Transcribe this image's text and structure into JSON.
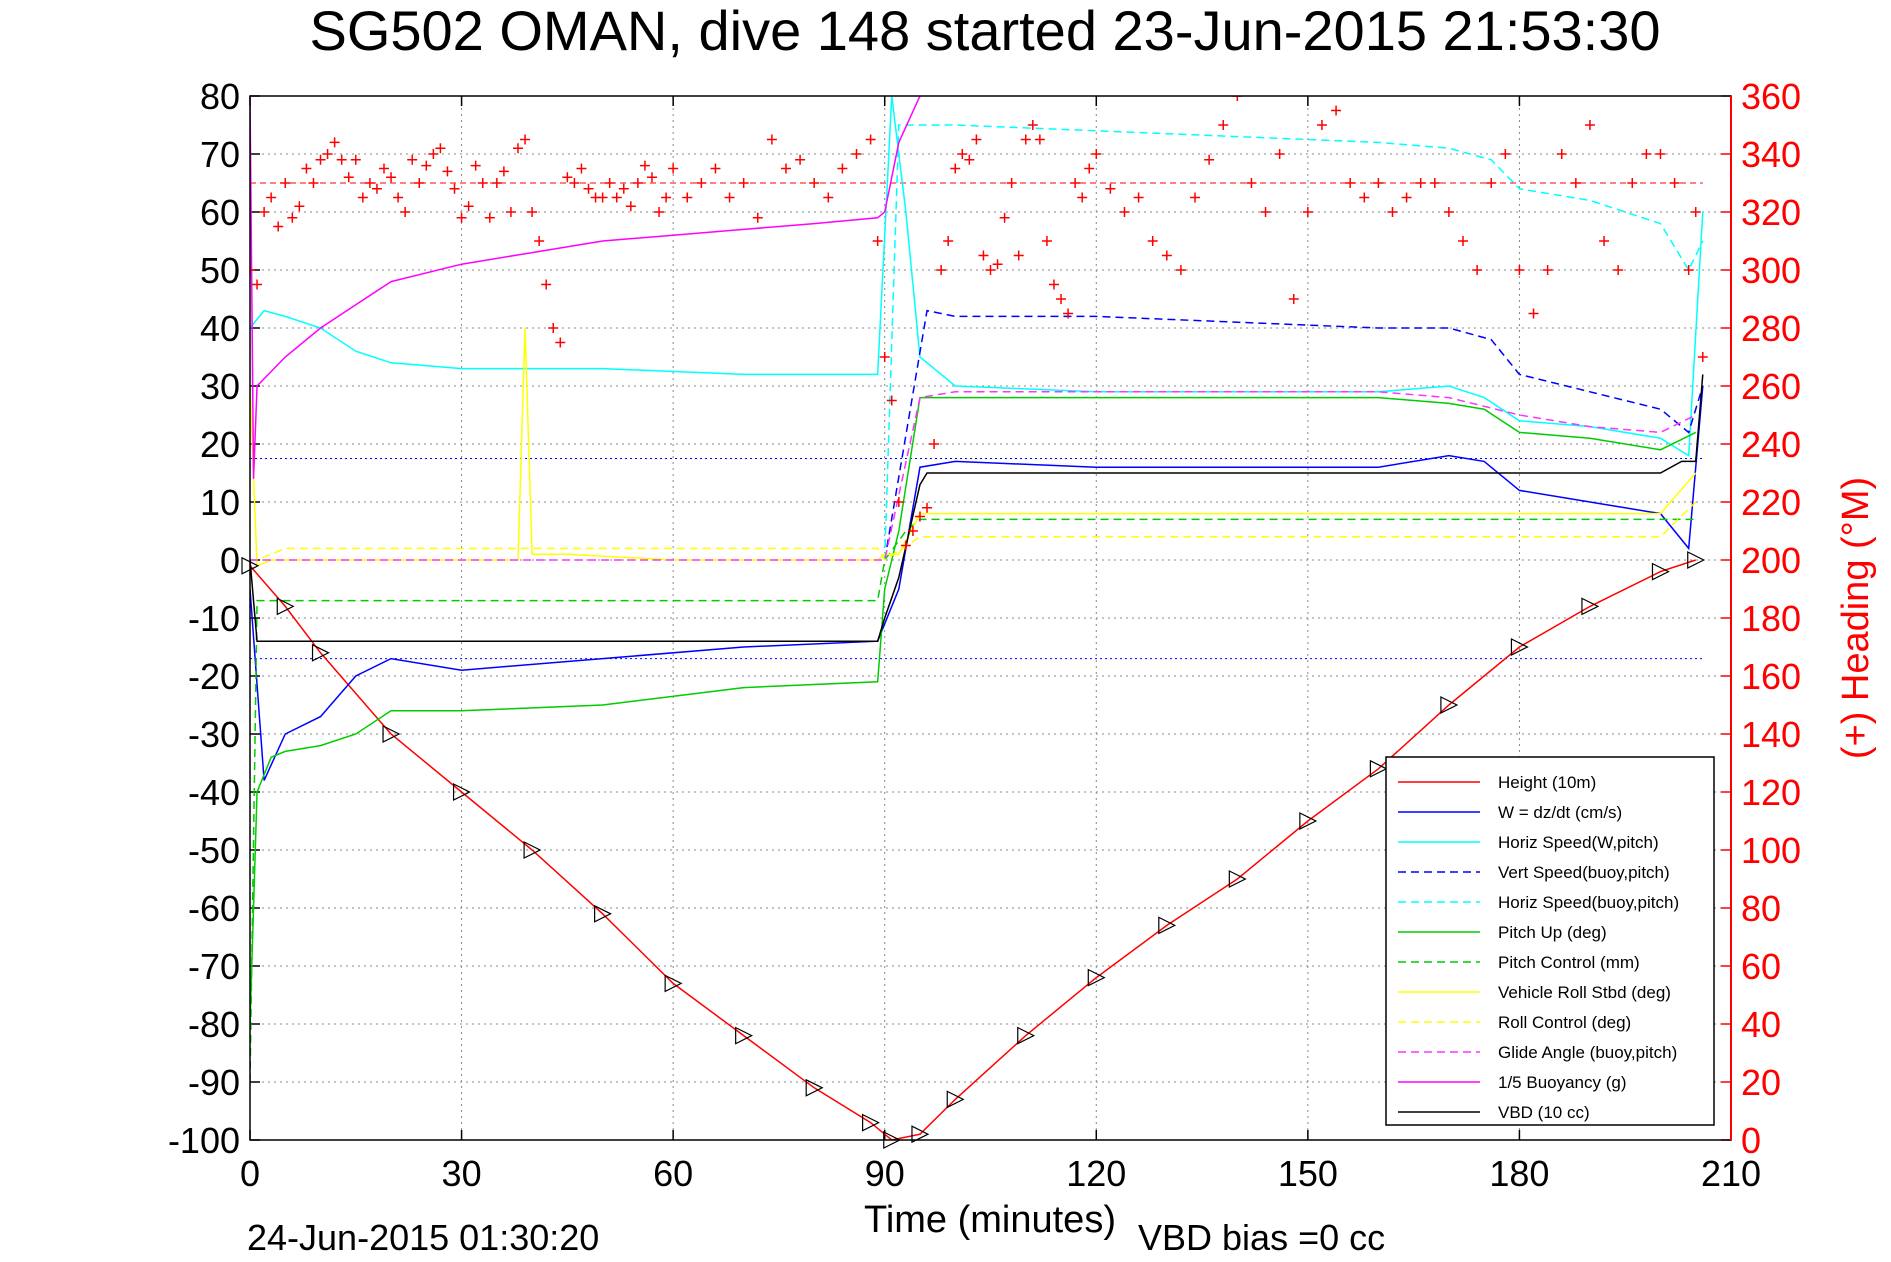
{
  "chart_data": {
    "type": "line",
    "title": "SG502 OMAN, dive 148 started 23-Jun-2015 21:53:30",
    "xlabel": "Time (minutes)",
    "ylabel": "",
    "y2label": "(+) Heading (°M)",
    "xlim": [
      0,
      210
    ],
    "ylim": [
      -100,
      80
    ],
    "y2lim": [
      0,
      360
    ],
    "xticks": [
      "0",
      "30",
      "60",
      "90",
      "120",
      "150",
      "180",
      "210"
    ],
    "yticks": [
      "80",
      "70",
      "60",
      "50",
      "40",
      "30",
      "20",
      "10",
      "0",
      "-10",
      "-20",
      "-30",
      "-40",
      "-50",
      "-60",
      "-70",
      "-80",
      "-90",
      "-100"
    ],
    "y2ticks": [
      "360",
      "340",
      "320",
      "300",
      "280",
      "260",
      "240",
      "220",
      "200",
      "180",
      "160",
      "140",
      "120",
      "100",
      "80",
      "60",
      "40",
      "20",
      "0"
    ],
    "grid": true,
    "legend_position": "bottom-right",
    "footer_left": "24-Jun-2015 01:30:20",
    "footer_right": "VBD bias =0 cc",
    "series": [
      {
        "name": "Height (10m)",
        "color": "#ff0000",
        "style": "solid",
        "x": [
          0,
          5,
          10,
          20,
          30,
          40,
          50,
          60,
          70,
          80,
          88,
          91,
          95,
          100,
          110,
          120,
          130,
          140,
          150,
          160,
          170,
          180,
          190,
          200,
          205
        ],
        "y": [
          -1,
          -8,
          -16,
          -30,
          -40,
          -50,
          -61,
          -73,
          -82,
          -91,
          -97,
          -100,
          -99,
          -93,
          -82,
          -72,
          -63,
          -55,
          -45,
          -36,
          -25,
          -15,
          -8,
          -2,
          0
        ]
      },
      {
        "name": "W = dz/dt (cm/s)",
        "color": "#0000ff",
        "style": "solid",
        "x": [
          0,
          2,
          5,
          10,
          15,
          20,
          30,
          50,
          70,
          89,
          92,
          95,
          100,
          120,
          140,
          160,
          170,
          175,
          180,
          190,
          200,
          204,
          206
        ],
        "y": [
          -5,
          -38,
          -30,
          -27,
          -20,
          -17,
          -19,
          -17,
          -15,
          -14,
          -5,
          16,
          17,
          16,
          16,
          16,
          18,
          17,
          12,
          10,
          8,
          2,
          30
        ]
      },
      {
        "name": "Horiz Speed(W,pitch)",
        "color": "#00ffff",
        "style": "solid",
        "x": [
          0,
          2,
          5,
          10,
          15,
          20,
          30,
          50,
          70,
          89,
          91,
          93,
          95,
          100,
          120,
          140,
          160,
          170,
          175,
          180,
          190,
          200,
          204,
          206
        ],
        "y": [
          40,
          43,
          42,
          40,
          36,
          34,
          33,
          33,
          32,
          32,
          80,
          60,
          35,
          30,
          29,
          29,
          29,
          30,
          28,
          24,
          23,
          21,
          18,
          60
        ]
      },
      {
        "name": "Vert Speed(buoy,pitch)",
        "color": "#0000ff",
        "style": "dashed",
        "x": [
          90,
          96,
          100,
          120,
          140,
          160,
          170,
          176,
          180,
          190,
          200,
          204,
          206
        ],
        "y": [
          0,
          43,
          42,
          42,
          41,
          40,
          40,
          38,
          32,
          29,
          26,
          22,
          30
        ]
      },
      {
        "name": "Horiz Speed(buoy,pitch)",
        "color": "#00ffff",
        "style": "dashed",
        "x": [
          90,
          92,
          96,
          100,
          120,
          140,
          160,
          170,
          176,
          180,
          190,
          200,
          204,
          206
        ],
        "y": [
          0,
          75,
          75,
          75,
          74,
          73,
          72,
          71,
          69,
          64,
          62,
          58,
          50,
          55
        ]
      },
      {
        "name": "Pitch Up (deg)",
        "color": "#00cc00",
        "style": "solid",
        "x": [
          0,
          1,
          3,
          5,
          10,
          15,
          20,
          30,
          50,
          70,
          89,
          90,
          92,
          95,
          100,
          120,
          140,
          160,
          170,
          175,
          180,
          190,
          200,
          205
        ],
        "y": [
          -80,
          -40,
          -34,
          -33,
          -32,
          -30,
          -26,
          -26,
          -25,
          -22,
          -21,
          -5,
          5,
          28,
          28,
          28,
          28,
          28,
          27,
          26,
          22,
          21,
          19,
          22
        ]
      },
      {
        "name": "Pitch Control (mm)",
        "color": "#00cc00",
        "style": "dashed",
        "x": [
          0,
          1,
          3,
          20,
          40,
          60,
          89,
          90,
          93,
          95,
          100,
          120,
          140,
          160,
          180,
          200,
          205
        ],
        "y": [
          -90,
          -7,
          -7,
          -7,
          -7,
          -7,
          -7,
          0,
          5,
          7,
          7,
          7,
          7,
          7,
          7,
          7,
          7
        ]
      },
      {
        "name": "Vehicle Roll Stbd (deg)",
        "color": "#ffff00",
        "style": "solid",
        "x": [
          0,
          1,
          3,
          10,
          20,
          38,
          39,
          40,
          45,
          60,
          80,
          89,
          90,
          92,
          95,
          100,
          120,
          140,
          160,
          170,
          175,
          180,
          190,
          200,
          205
        ],
        "y": [
          30,
          -1,
          0,
          0,
          0,
          0,
          40,
          1,
          1,
          0,
          0,
          0,
          1,
          1,
          8,
          8,
          8,
          8,
          8,
          8,
          8,
          8,
          8,
          8,
          15
        ]
      },
      {
        "name": "Roll Control (deg)",
        "color": "#ffff00",
        "style": "dashed",
        "x": [
          0,
          1,
          5,
          20,
          40,
          60,
          89,
          90,
          95,
          100,
          120,
          140,
          160,
          180,
          200,
          205
        ],
        "y": [
          0,
          0,
          2,
          2,
          2,
          2,
          2,
          0,
          4,
          4,
          4,
          4,
          4,
          4,
          4,
          10
        ]
      },
      {
        "name": "Glide Angle (buoy,pitch)",
        "color": "#ff33ff",
        "style": "dashed",
        "x": [
          0,
          10,
          30,
          60,
          89,
          90,
          95,
          100,
          120,
          140,
          160,
          170,
          180,
          190,
          200,
          205
        ],
        "y": [
          0,
          0,
          0,
          0,
          0,
          0,
          28,
          29,
          29,
          29,
          29,
          28,
          25,
          23,
          22,
          25
        ]
      },
      {
        "name": "1/5 Buoyancy (g)",
        "color": "#ff00ff",
        "style": "solid",
        "x": [
          0,
          0.5,
          1,
          5,
          10,
          15,
          20,
          30,
          40,
          50,
          60,
          70,
          80,
          89,
          90,
          92,
          95
        ],
        "y": [
          80,
          14,
          30,
          35,
          40,
          44,
          48,
          51,
          53,
          55,
          56,
          57,
          58,
          59,
          60,
          72,
          80
        ]
      },
      {
        "name": "VBD (10 cc)",
        "color": "#000000",
        "style": "solid",
        "x": [
          0,
          1,
          5,
          30,
          60,
          89,
          90,
          92,
          95,
          96,
          120,
          150,
          180,
          200,
          203,
          205,
          206
        ],
        "y": [
          0,
          -14,
          -14,
          -14,
          -14,
          -14,
          -10,
          -3,
          13,
          15,
          15,
          15,
          15,
          15,
          17,
          17,
          32
        ]
      }
    ],
    "heading_series": {
      "name": "Heading",
      "color": "#ff0000",
      "marker": "+",
      "axis": "right",
      "mean": 330,
      "x": [
        0,
        1,
        2,
        3,
        4,
        5,
        6,
        7,
        8,
        9,
        10,
        11,
        12,
        13,
        14,
        15,
        16,
        17,
        18,
        19,
        20,
        21,
        22,
        23,
        24,
        25,
        26,
        27,
        28,
        29,
        30,
        31,
        32,
        33,
        34,
        35,
        36,
        37,
        38,
        39,
        40,
        41,
        42,
        43,
        44,
        45,
        46,
        47,
        48,
        49,
        50,
        51,
        52,
        53,
        54,
        55,
        56,
        57,
        58,
        59,
        60,
        62,
        64,
        66,
        68,
        70,
        72,
        74,
        76,
        78,
        80,
        82,
        84,
        86,
        88,
        89,
        90,
        91,
        92,
        93,
        94,
        95,
        96,
        97,
        98,
        99,
        100,
        101,
        102,
        103,
        104,
        105,
        106,
        107,
        108,
        109,
        110,
        111,
        112,
        113,
        114,
        115,
        116,
        117,
        118,
        119,
        120,
        122,
        124,
        126,
        128,
        130,
        132,
        134,
        136,
        138,
        140,
        142,
        144,
        146,
        148,
        150,
        152,
        154,
        156,
        158,
        160,
        162,
        164,
        166,
        168,
        170,
        172,
        174,
        176,
        178,
        180,
        182,
        184,
        186,
        188,
        190,
        192,
        194,
        196,
        198,
        200,
        202,
        204,
        205,
        206
      ],
      "y": [
        300,
        295,
        320,
        325,
        315,
        330,
        318,
        322,
        335,
        330,
        338,
        340,
        344,
        338,
        332,
        338,
        325,
        330,
        328,
        335,
        332,
        325,
        320,
        338,
        330,
        336,
        340,
        342,
        334,
        328,
        318,
        322,
        336,
        330,
        318,
        330,
        334,
        320,
        342,
        345,
        320,
        310,
        295,
        280,
        275,
        332,
        330,
        335,
        328,
        325,
        325,
        330,
        325,
        328,
        322,
        330,
        336,
        332,
        320,
        325,
        335,
        325,
        330,
        335,
        325,
        330,
        318,
        345,
        335,
        338,
        330,
        325,
        335,
        340,
        345,
        310,
        270,
        255,
        220,
        205,
        210,
        215,
        218,
        240,
        300,
        310,
        335,
        340,
        338,
        345,
        305,
        300,
        302,
        318,
        330,
        305,
        345,
        350,
        345,
        310,
        295,
        290,
        285,
        330,
        325,
        335,
        340,
        328,
        320,
        325,
        310,
        305,
        300,
        325,
        338,
        350,
        360,
        330,
        320,
        340,
        290,
        320,
        350,
        355,
        330,
        325,
        330,
        320,
        325,
        330,
        330,
        320,
        310,
        300,
        330,
        340,
        300,
        285,
        300,
        340,
        330,
        350,
        310,
        300,
        330,
        340,
        340,
        330,
        300,
        320,
        270
      ]
    }
  }
}
